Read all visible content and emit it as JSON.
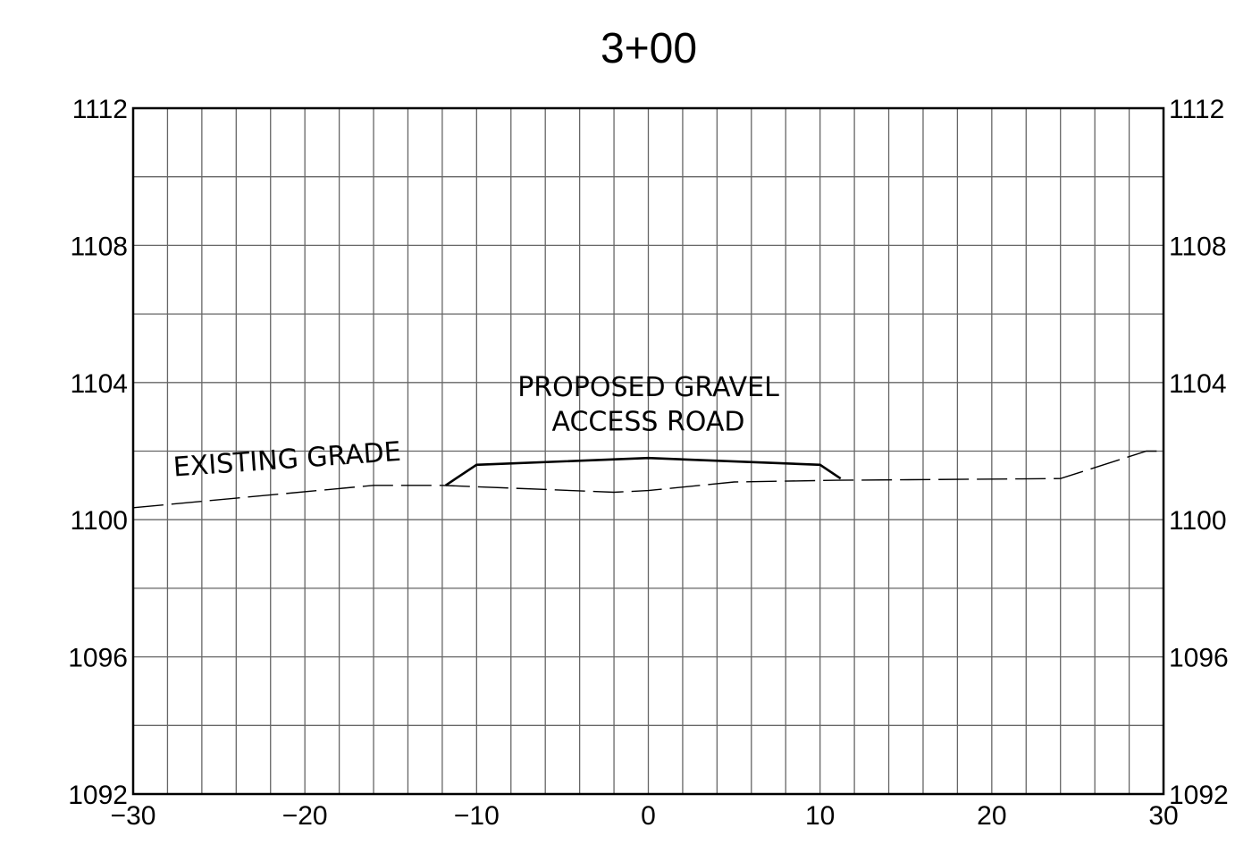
{
  "chart_data": {
    "type": "line",
    "title": "3+00",
    "xlim": [
      -30,
      30
    ],
    "ylim": [
      1092,
      1112
    ],
    "x_ticks": [
      -30,
      -20,
      -10,
      0,
      10,
      20,
      30
    ],
    "x_tick_labels": [
      "−30",
      "−20",
      "−10",
      "0",
      "10",
      "20",
      "30"
    ],
    "y_ticks": [
      1092,
      1096,
      1100,
      1104,
      1108,
      1112
    ],
    "y_tick_labels": [
      "1092",
      "1096",
      "1100",
      "1104",
      "1108",
      "1112"
    ],
    "y_axis_labels_both_sides": true,
    "grid": {
      "x_step": 2,
      "y_step": 2
    },
    "series": [
      {
        "name": "EXISTING GRADE",
        "style": "dashed",
        "x": [
          -30,
          -16,
          -12,
          -2,
          0,
          5,
          11,
          24,
          29,
          30
        ],
        "y": [
          1100.35,
          1101.0,
          1101.0,
          1100.8,
          1100.85,
          1101.1,
          1101.15,
          1101.2,
          1102.0,
          1102.0
        ]
      },
      {
        "name": "PROPOSED GRAVEL ACCESS ROAD",
        "style": "solid",
        "x": [
          -11.8,
          -10,
          0,
          10,
          11.2
        ],
        "y": [
          1101.0,
          1101.6,
          1101.8,
          1101.6,
          1101.2
        ]
      }
    ],
    "annotations": [
      {
        "text": "EXISTING GRADE",
        "x": -21,
        "y": 1101.5
      },
      {
        "text": "PROPOSED GRAVEL",
        "x": 0,
        "y": 1103.6
      },
      {
        "text": "ACCESS ROAD",
        "x": 0,
        "y": 1102.6
      }
    ]
  }
}
